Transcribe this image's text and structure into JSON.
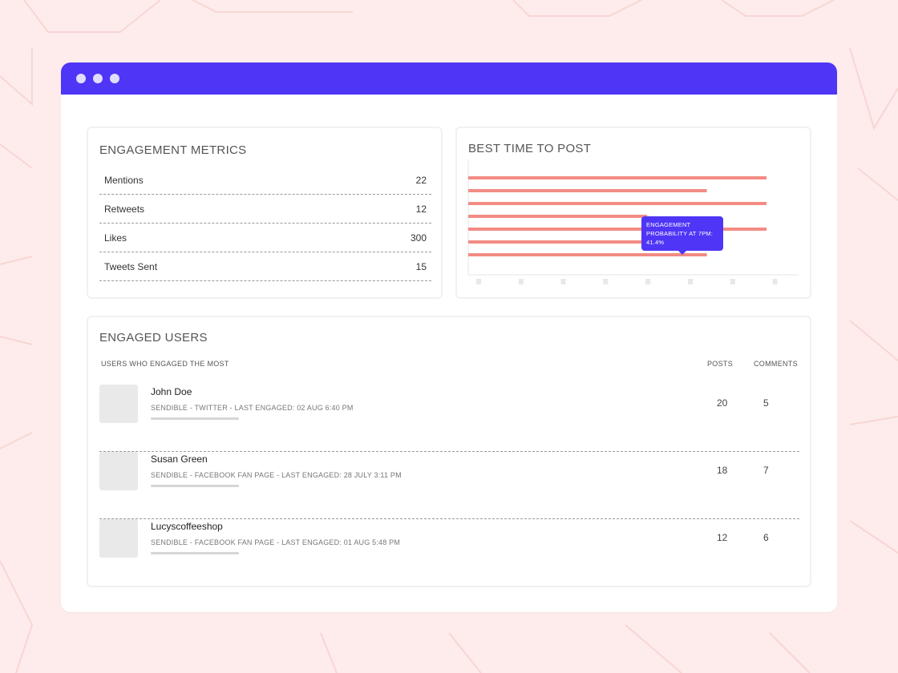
{
  "window": {
    "controls": [
      "close-dot",
      "minimize-dot",
      "maximize-dot"
    ]
  },
  "metrics": {
    "title": "ENGAGEMENT METRICS",
    "rows": [
      {
        "label": "Mentions",
        "value": "22"
      },
      {
        "label": "Retweets",
        "value": "12"
      },
      {
        "label": "Likes",
        "value": "300"
      },
      {
        "label": "Tweets Sent",
        "value": "15"
      }
    ]
  },
  "best_time": {
    "title": "BEST TIME TO POST",
    "tooltip_line1": "ENGAGEMENT",
    "tooltip_line2": "PROBABILITY AT 7PM:",
    "tooltip_value": "41.4%"
  },
  "chart_data": {
    "type": "bar",
    "orientation": "horizontal",
    "title": "BEST TIME TO POST",
    "values": [
      1.0,
      0.8,
      1.0,
      0.6,
      1.0,
      0.6,
      0.8
    ],
    "accent_colors": [
      "#f28c84",
      "#4f35f6"
    ],
    "grid": false
  },
  "users": {
    "title": "ENGAGED USERS",
    "col_users": "USERS WHO ENGAGED THE MOST",
    "col_posts": "POSTS",
    "col_comments": "COMMENTS",
    "list": [
      {
        "name": "John Doe",
        "sub": "SENDIBLE - TWITTER - LAST ENGAGED: 02 AUG 6:40 PM",
        "posts": "20",
        "comments": "5"
      },
      {
        "name": "Susan Green",
        "sub": "SENDIBLE - FACEBOOK FAN PAGE - LAST ENGAGED: 28 JULY 3:11 PM",
        "posts": "18",
        "comments": "7"
      },
      {
        "name": "Lucyscoffeeshop",
        "sub": "SENDIBLE - FACEBOOK FAN PAGE - LAST ENGAGED: 01 AUG 5:48 PM",
        "posts": "12",
        "comments": "6"
      }
    ]
  }
}
